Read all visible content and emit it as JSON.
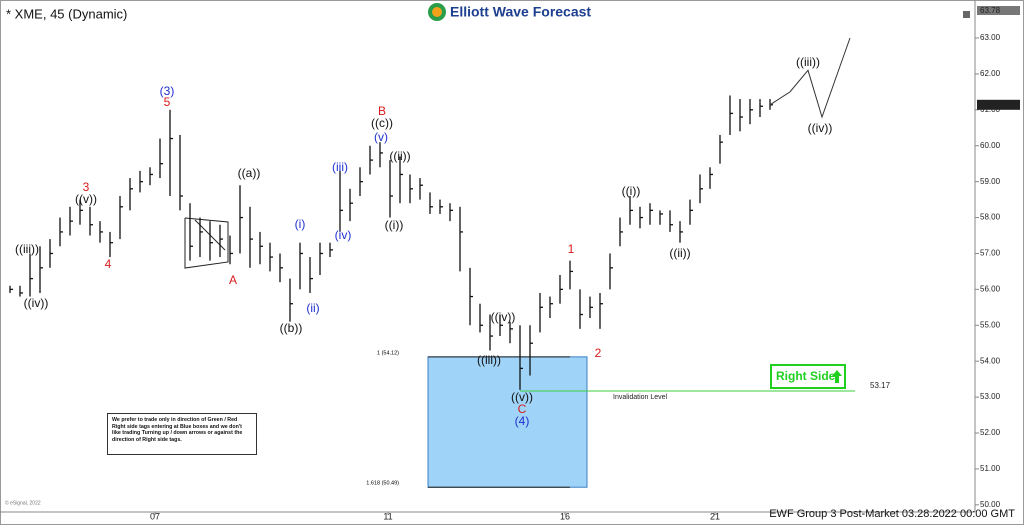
{
  "chart_data": {
    "type": "ohlc",
    "title": "* XME, 45 (Dynamic)",
    "logo": "Elliott Wave Forecast",
    "footer": "EWF Group 3 Post-Market 03.28.2022 00:00 GMT",
    "source": "© eSignal, 2022",
    "bar_color": "#111111",
    "x": [
      1,
      2,
      3,
      4,
      5,
      6,
      7,
      8,
      9,
      10,
      11,
      12,
      13,
      14,
      15,
      16,
      17,
      18,
      19,
      20,
      21,
      22,
      23,
      24,
      25,
      26,
      27,
      28,
      29,
      30,
      31,
      32,
      33,
      34,
      35,
      36,
      37,
      38,
      39,
      40,
      41,
      42,
      43,
      44,
      45,
      46,
      47,
      48,
      49,
      50,
      51,
      52,
      53,
      54,
      55,
      56,
      57,
      58,
      59,
      60,
      61,
      62,
      63,
      64,
      65,
      66,
      67,
      68,
      69,
      70,
      71,
      72,
      73,
      74,
      75,
      76,
      77
    ],
    "high": [
      56.1,
      56.1,
      57.0,
      57.2,
      57.4,
      58.0,
      58.3,
      58.5,
      58.3,
      57.9,
      57.6,
      58.6,
      59.1,
      59.3,
      59.4,
      60.2,
      61.0,
      60.3,
      58.4,
      58.0,
      57.9,
      57.8,
      57.5,
      58.9,
      58.3,
      57.6,
      57.3,
      57.0,
      56.3,
      57.3,
      56.9,
      57.3,
      57.3,
      59.3,
      58.8,
      59.4,
      60.0,
      60.1,
      59.6,
      59.7,
      59.2,
      59.1,
      58.7,
      58.5,
      58.4,
      58.3,
      56.6,
      55.6,
      55.3,
      55.3,
      55.1,
      55.0,
      55.0,
      55.9,
      55.8,
      56.4,
      56.8,
      56.0,
      55.8,
      55.9,
      57.0,
      58.0,
      58.6,
      58.3,
      58.4,
      58.2,
      58.2,
      57.9,
      58.5,
      59.2,
      59.4,
      60.3,
      61.4,
      61.3,
      61.3,
      61.3,
      61.3
    ],
    "low": [
      55.9,
      55.8,
      55.8,
      55.9,
      56.6,
      57.2,
      57.5,
      57.8,
      57.5,
      57.3,
      56.9,
      57.4,
      58.2,
      58.7,
      58.9,
      59.1,
      58.6,
      58.2,
      56.8,
      56.9,
      56.8,
      56.9,
      56.7,
      57.0,
      56.6,
      56.7,
      56.5,
      56.2,
      55.1,
      56.0,
      55.9,
      56.4,
      56.9,
      57.6,
      57.9,
      58.6,
      59.2,
      59.4,
      58.0,
      58.4,
      58.4,
      58.5,
      58.1,
      58.1,
      57.9,
      56.5,
      55.0,
      54.8,
      54.3,
      54.7,
      54.5,
      53.2,
      53.6,
      54.8,
      55.2,
      55.6,
      56.0,
      54.9,
      55.2,
      54.9,
      56.0,
      57.2,
      57.8,
      57.7,
      57.8,
      57.8,
      57.6,
      57.3,
      57.8,
      58.4,
      58.8,
      59.5,
      60.3,
      60.4,
      60.6,
      60.8,
      61.0
    ],
    "close": [
      56.0,
      55.9,
      56.3,
      56.6,
      57.0,
      57.6,
      57.9,
      58.2,
      57.8,
      57.6,
      57.3,
      58.3,
      58.8,
      59.0,
      59.2,
      59.5,
      60.2,
      58.6,
      57.2,
      57.6,
      57.3,
      57.4,
      57.0,
      58.0,
      57.4,
      57.2,
      56.9,
      56.6,
      55.6,
      57.0,
      56.3,
      57.0,
      57.1,
      58.2,
      58.4,
      59.0,
      59.6,
      59.8,
      58.6,
      59.2,
      58.8,
      58.9,
      58.3,
      58.3,
      58.2,
      57.6,
      55.8,
      55.0,
      54.7,
      55.0,
      54.9,
      53.8,
      54.5,
      55.5,
      55.6,
      56.0,
      56.5,
      55.3,
      55.5,
      55.6,
      56.6,
      57.6,
      58.2,
      58.0,
      58.2,
      58.1,
      57.8,
      57.6,
      58.2,
      58.8,
      59.2,
      60.1,
      60.9,
      60.8,
      61.0,
      61.1,
      61.14
    ],
    "projection": {
      "color": "#333333",
      "x": [
        77,
        79,
        80.8,
        82.2,
        85
      ],
      "y": [
        61.14,
        61.5,
        62.1,
        60.8,
        63.0
      ]
    },
    "xlim": [
      0,
      97.5
    ],
    "xticks": [
      {
        "value": 15.5,
        "label": "07"
      },
      {
        "value": 38.8,
        "label": "11"
      },
      {
        "value": 56.5,
        "label": "16"
      },
      {
        "value": 71.5,
        "label": "21"
      }
    ],
    "ylim": [
      49.8,
      63.78
    ],
    "yticks": [
      {
        "value": 63,
        "label": "63.00"
      },
      {
        "value": 62,
        "label": "62.00"
      },
      {
        "value": 61,
        "label": "61.00"
      },
      {
        "value": 60,
        "label": "60.00"
      },
      {
        "value": 59,
        "label": "59.00"
      },
      {
        "value": 58,
        "label": "58.00"
      },
      {
        "value": 57,
        "label": "57.00"
      },
      {
        "value": 56,
        "label": "56.00"
      },
      {
        "value": 55,
        "label": "55.00"
      },
      {
        "value": 54,
        "label": "54.00"
      },
      {
        "value": 53,
        "label": "53.00"
      },
      {
        "value": 52,
        "label": "52.00"
      },
      {
        "value": 51,
        "label": "51.00"
      },
      {
        "value": 50,
        "label": "50.00"
      }
    ],
    "blue_box": {
      "top": 54.12,
      "bottom": 50.49,
      "top_label": "1 (54.12)",
      "bottom_label": "1.618 (50.49)",
      "x_start": 42.8,
      "x_end": 58.7,
      "color": "#9fd3f7"
    },
    "invalidation": {
      "value": 53.17,
      "label": "Invalidation Level",
      "x_start": 52,
      "x_end": 85.5,
      "color": "#3ccf3c"
    },
    "right_side": "Right Side",
    "note": "We prefer to trade only in direction of Green / Red Right side tags entering at Blue boxes and we don't like trading Turning up / down arrows or against the direction of Right side tags.",
    "wave_labels": [
      {
        "text": "((iii))",
        "color": "#111111"
      },
      {
        "text": "((iv))",
        "color": "#111111"
      },
      {
        "text": "3",
        "color": "#d81b1b"
      },
      {
        "text": "((v))",
        "color": "#111111"
      },
      {
        "text": "4",
        "color": "#d81b1b"
      },
      {
        "text": "(3)",
        "color": "#1f2fd0"
      },
      {
        "text": "5",
        "color": "#d81b1b"
      },
      {
        "text": "((a))",
        "color": "#111111"
      },
      {
        "text": "A",
        "color": "#d81b1b"
      },
      {
        "text": "(i)",
        "color": "#1f2fd0"
      },
      {
        "text": "(ii)",
        "color": "#1f2fd0"
      },
      {
        "text": "((b))",
        "color": "#111111"
      },
      {
        "text": "(iii)",
        "color": "#1f2fd0"
      },
      {
        "text": "(iv)",
        "color": "#1f2fd0"
      },
      {
        "text": "B",
        "color": "#d81b1b"
      },
      {
        "text": "((c))",
        "color": "#111111"
      },
      {
        "text": "(v)",
        "color": "#1f2fd0"
      },
      {
        "text": "((ii))",
        "color": "#111111"
      },
      {
        "text": "((i))",
        "color": "#111111"
      },
      {
        "text": "((iv))",
        "color": "#111111"
      },
      {
        "text": "((iii))",
        "color": "#111111"
      },
      {
        "text": "((v))",
        "color": "#111111"
      },
      {
        "text": "C",
        "color": "#d81b1b"
      },
      {
        "text": "(4)",
        "color": "#1f2fd0"
      },
      {
        "text": "1",
        "color": "#d81b1b"
      },
      {
        "text": "2",
        "color": "#d81b1b"
      },
      {
        "text": "((i))",
        "color": "#111111"
      },
      {
        "text": "((ii))",
        "color": "#111111"
      },
      {
        "text": "((iii))",
        "color": "#111111"
      },
      {
        "text": "((iv))",
        "color": "#111111"
      }
    ]
  }
}
